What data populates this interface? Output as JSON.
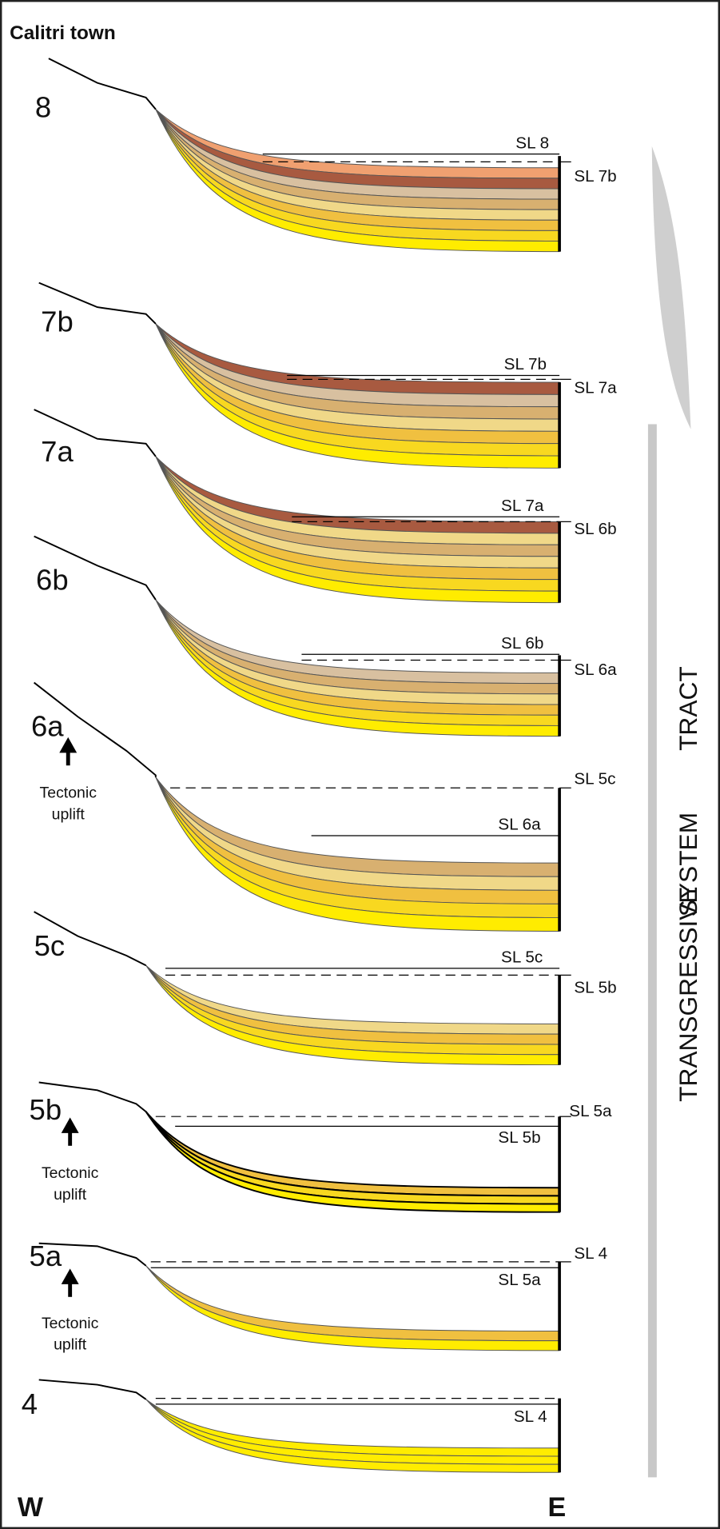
{
  "title": "Calitri town",
  "stages": [
    {
      "label": "8",
      "sl_left": "SL 8",
      "sl_right": "SL 7b"
    },
    {
      "label": "7b",
      "sl_left": "SL 7b",
      "sl_right": "SL 7a"
    },
    {
      "label": "7a",
      "sl_left": "SL 7a",
      "sl_right": "SL 6b"
    },
    {
      "label": "6b",
      "sl_left": "SL 6b",
      "sl_right": "SL 6a"
    },
    {
      "label": "6a",
      "sl_left": "SL 6a",
      "sl_right": "SL 5c",
      "note": [
        "Tectonic",
        "uplift"
      ]
    },
    {
      "label": "5c",
      "sl_left": "SL 5c",
      "sl_right": "SL 5b"
    },
    {
      "label": "5b",
      "sl_left": "SL 5b",
      "sl_right": "SL 5a",
      "note": [
        "Tectonic",
        "uplift"
      ]
    },
    {
      "label": "5a",
      "sl_left": "SL 5a",
      "sl_right": "SL 4",
      "note": [
        "Tectonic",
        "uplift"
      ]
    },
    {
      "label": "4",
      "sl_left": "SL 4"
    }
  ],
  "side_label": [
    "TRANSGRESSIVE",
    "SYSTEM",
    "TRACT"
  ],
  "directions": {
    "west": "W",
    "east": "E"
  }
}
